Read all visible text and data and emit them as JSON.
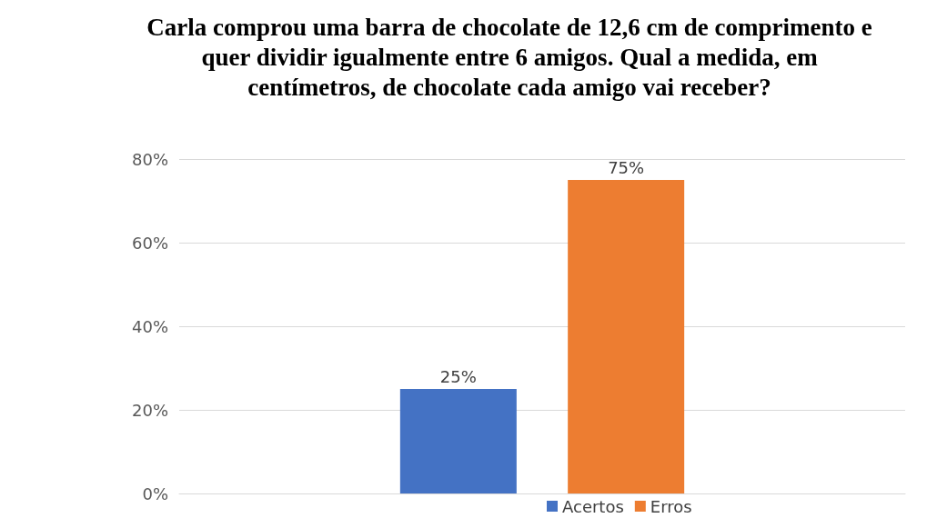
{
  "chart_data": {
    "type": "bar",
    "title": "Carla comprou uma barra de chocolate de 12,6 cm de comprimento e quer dividir igualmente entre 6 amigos. Qual a medida, em centímetros, de chocolate cada amigo vai receber?",
    "categories": [
      null
    ],
    "series": [
      {
        "name": "Acertos",
        "color": "#4472c4",
        "values": [
          25
        ],
        "value_labels": [
          "25%"
        ]
      },
      {
        "name": "Erros",
        "color": "#ed7d31",
        "values": [
          75
        ],
        "value_labels": [
          "75%"
        ]
      }
    ],
    "ylim": [
      0,
      80
    ],
    "yticks": [
      {
        "value": 0,
        "label": "0%"
      },
      {
        "value": 20,
        "label": "20%"
      },
      {
        "value": 40,
        "label": "40%"
      },
      {
        "value": 60,
        "label": "60%"
      },
      {
        "value": 80,
        "label": "80%"
      }
    ],
    "grid": "y",
    "legend": "bottom"
  }
}
